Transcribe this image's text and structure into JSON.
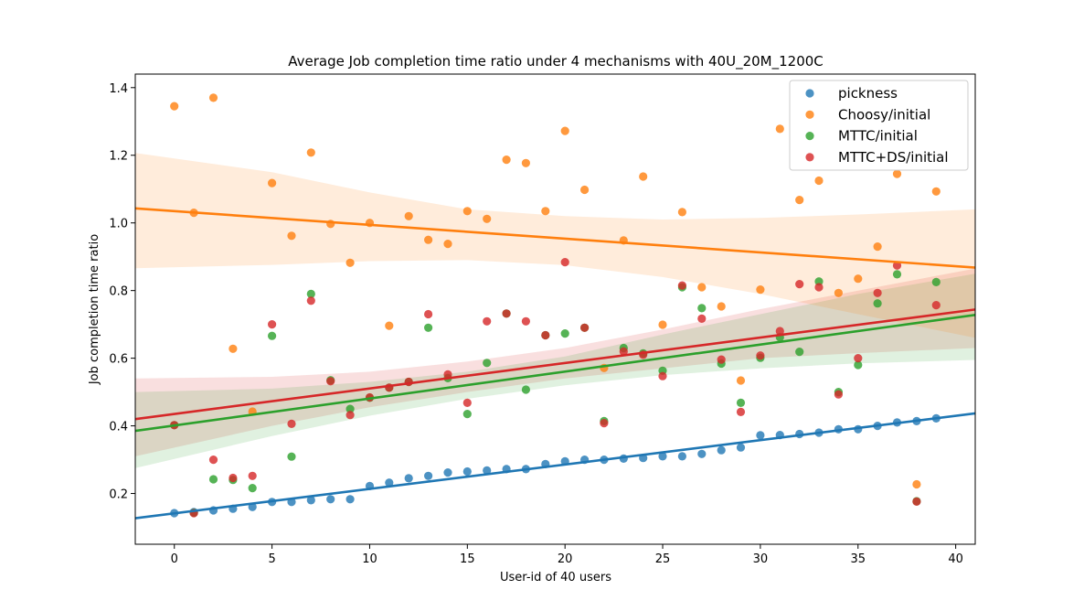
{
  "chart_data": {
    "type": "scatter",
    "title": "Average Job completion time ratio under 4 mechanisms with 40U_20M_1200C",
    "xlabel": "User-id of 40 users",
    "ylabel": "Job completion time ratio",
    "xlim": [
      -2,
      41
    ],
    "ylim": [
      0.05,
      1.44
    ],
    "xticks": [
      0,
      5,
      10,
      15,
      20,
      25,
      30,
      35,
      40
    ],
    "yticks": [
      0.2,
      0.4,
      0.6,
      0.8,
      1.0,
      1.2,
      1.4
    ],
    "ytick_labels": [
      "0.2",
      "0.4",
      "0.6",
      "0.8",
      "1.0",
      "1.2",
      "1.4"
    ],
    "grid": false,
    "legend_position": "top-right",
    "series": [
      {
        "name": "pickness",
        "color": "#1f77b4",
        "x": [
          0,
          1,
          2,
          3,
          4,
          5,
          6,
          7,
          8,
          9,
          10,
          11,
          12,
          13,
          14,
          15,
          16,
          17,
          18,
          19,
          20,
          21,
          22,
          23,
          24,
          25,
          26,
          27,
          28,
          29,
          30,
          31,
          32,
          33,
          34,
          35,
          36,
          37,
          38,
          39
        ],
        "y": [
          0.142,
          0.145,
          0.15,
          0.155,
          0.16,
          0.175,
          0.175,
          0.18,
          0.183,
          0.183,
          0.222,
          0.232,
          0.245,
          0.252,
          0.262,
          0.265,
          0.268,
          0.272,
          0.272,
          0.287,
          0.295,
          0.3,
          0.3,
          0.303,
          0.305,
          0.31,
          0.31,
          0.317,
          0.328,
          0.336,
          0.372,
          0.373,
          0.376,
          0.38,
          0.39,
          0.39,
          0.4,
          0.41,
          0.414,
          0.422
        ],
        "fit": {
          "x": [
            -2,
            41
          ],
          "y": [
            0.127,
            0.437
          ]
        },
        "ci": {
          "x": [
            -2,
            41
          ],
          "lower": [
            0.127,
            0.437
          ],
          "upper": [
            0.127,
            0.437
          ]
        }
      },
      {
        "name": "Choosy/initial",
        "color": "#ff7f0e",
        "x": [
          0,
          1,
          2,
          3,
          4,
          5,
          6,
          7,
          8,
          9,
          10,
          11,
          12,
          13,
          14,
          15,
          16,
          17,
          18,
          19,
          20,
          21,
          22,
          23,
          24,
          25,
          26,
          27,
          28,
          29,
          30,
          31,
          32,
          33,
          34,
          35,
          36,
          37,
          38,
          39
        ],
        "y": [
          1.345,
          1.03,
          1.37,
          0.628,
          0.442,
          1.118,
          0.962,
          1.208,
          0.997,
          0.882,
          1.0,
          0.696,
          1.02,
          0.95,
          0.938,
          1.035,
          1.012,
          1.187,
          1.177,
          1.035,
          1.272,
          1.098,
          0.571,
          0.948,
          1.137,
          0.699,
          1.032,
          0.81,
          0.753,
          0.534,
          0.803,
          1.278,
          1.068,
          1.125,
          0.793,
          0.835,
          0.93,
          1.145,
          0.227,
          1.093
        ],
        "fit": {
          "x": [
            -2,
            41
          ],
          "y": [
            1.043,
            0.868
          ]
        },
        "ci": {
          "x": [
            -2,
            5,
            10,
            15,
            20,
            25,
            30,
            35,
            41
          ],
          "lower": [
            0.866,
            0.876,
            0.887,
            0.89,
            0.875,
            0.84,
            0.79,
            0.73,
            0.66
          ],
          "upper": [
            1.207,
            1.15,
            1.09,
            1.04,
            1.02,
            1.01,
            1.015,
            1.025,
            1.04
          ]
        }
      },
      {
        "name": "MTTC/initial",
        "color": "#2ca02c",
        "x": [
          0,
          1,
          2,
          3,
          4,
          5,
          6,
          7,
          8,
          9,
          10,
          11,
          12,
          13,
          14,
          15,
          16,
          17,
          18,
          19,
          20,
          21,
          22,
          23,
          24,
          25,
          26,
          27,
          28,
          29,
          30,
          31,
          32,
          33,
          34,
          35,
          36,
          37,
          38,
          39
        ],
        "y": [
          0.402,
          0.143,
          0.242,
          0.24,
          0.216,
          0.666,
          0.309,
          0.79,
          0.535,
          0.45,
          0.483,
          0.513,
          0.53,
          0.69,
          0.541,
          0.435,
          0.586,
          0.732,
          0.507,
          0.668,
          0.673,
          0.69,
          0.414,
          0.63,
          0.614,
          0.563,
          0.81,
          0.748,
          0.584,
          0.468,
          0.601,
          0.662,
          0.619,
          0.827,
          0.5,
          0.58,
          0.762,
          0.848,
          0.177,
          0.825
        ],
        "fit": {
          "x": [
            -2,
            41
          ],
          "y": [
            0.385,
            0.728
          ]
        },
        "ci": {
          "x": [
            -2,
            5,
            10,
            15,
            20,
            25,
            30,
            35,
            41
          ],
          "lower": [
            0.275,
            0.37,
            0.43,
            0.48,
            0.52,
            0.55,
            0.57,
            0.585,
            0.595
          ],
          "upper": [
            0.5,
            0.51,
            0.53,
            0.56,
            0.605,
            0.67,
            0.73,
            0.79,
            0.85
          ]
        }
      },
      {
        "name": "MTTC+DS/initial",
        "color": "#d62728",
        "x": [
          0,
          1,
          2,
          3,
          4,
          5,
          6,
          7,
          8,
          9,
          10,
          11,
          12,
          13,
          14,
          15,
          16,
          17,
          18,
          19,
          20,
          21,
          22,
          23,
          24,
          25,
          26,
          27,
          28,
          29,
          30,
          31,
          32,
          33,
          34,
          35,
          36,
          37,
          38,
          39
        ],
        "y": [
          0.402,
          0.142,
          0.3,
          0.246,
          0.252,
          0.7,
          0.406,
          0.77,
          0.532,
          0.432,
          0.484,
          0.513,
          0.53,
          0.73,
          0.552,
          0.468,
          0.709,
          0.732,
          0.709,
          0.668,
          0.884,
          0.69,
          0.408,
          0.62,
          0.61,
          0.547,
          0.815,
          0.717,
          0.596,
          0.441,
          0.608,
          0.68,
          0.819,
          0.81,
          0.493,
          0.6,
          0.793,
          0.874,
          0.176,
          0.757
        ],
        "fit": {
          "x": [
            -2,
            41
          ],
          "y": [
            0.42,
            0.744
          ]
        },
        "ci": {
          "x": [
            -2,
            5,
            10,
            15,
            20,
            25,
            30,
            35,
            41
          ],
          "lower": [
            0.31,
            0.4,
            0.455,
            0.5,
            0.54,
            0.57,
            0.6,
            0.615,
            0.63
          ],
          "upper": [
            0.54,
            0.545,
            0.56,
            0.59,
            0.63,
            0.685,
            0.745,
            0.8,
            0.865
          ]
        }
      }
    ]
  }
}
